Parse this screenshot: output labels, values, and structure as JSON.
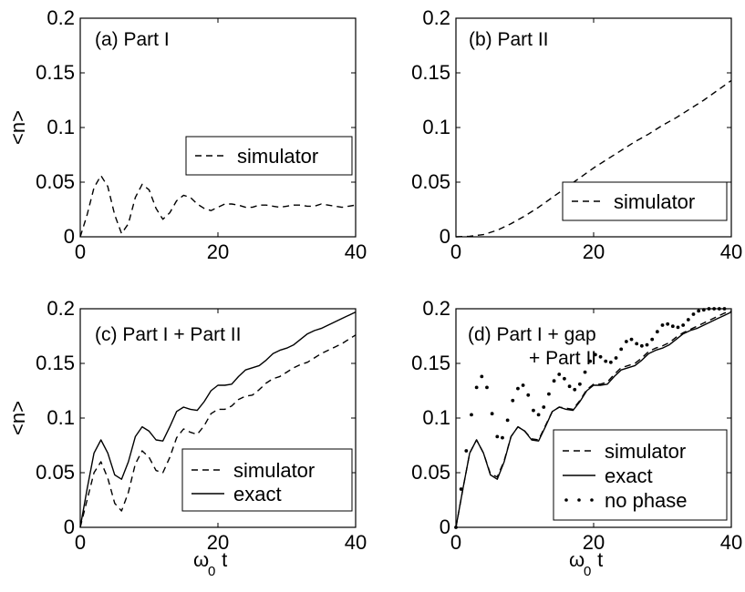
{
  "figure": {
    "shared_ylabel": "<n>",
    "shared_xlabel_main": "ω",
    "shared_xlabel_sub": "0",
    "shared_xlabel_tail": " t"
  },
  "chart_data": [
    {
      "type": "line",
      "title": "(a) Part I",
      "xlabel": "",
      "ylabel": "<n>",
      "xlim": [
        0,
        40
      ],
      "ylim": [
        0,
        0.2
      ],
      "xticks": [
        "0",
        "20",
        "40"
      ],
      "yticks": [
        "0",
        "0.05",
        "0.1",
        "0.15",
        "0.2"
      ],
      "legend": "right-middle",
      "series": [
        {
          "name": "simulator",
          "style": "dashed",
          "x": [
            0,
            1,
            2,
            3,
            4,
            5,
            6,
            7,
            8,
            9,
            10,
            11,
            12,
            13,
            14,
            15,
            16,
            17,
            18,
            19,
            20,
            21,
            22,
            23,
            24,
            25,
            26,
            27,
            28,
            29,
            30,
            31,
            32,
            33,
            34,
            35,
            36,
            37,
            38,
            39,
            40
          ],
          "y": [
            0,
            0.02,
            0.045,
            0.056,
            0.046,
            0.02,
            0.003,
            0.012,
            0.036,
            0.048,
            0.043,
            0.026,
            0.016,
            0.022,
            0.033,
            0.038,
            0.036,
            0.03,
            0.026,
            0.024,
            0.027,
            0.03,
            0.03,
            0.029,
            0.027,
            0.027,
            0.029,
            0.029,
            0.028,
            0.027,
            0.028,
            0.029,
            0.029,
            0.028,
            0.028,
            0.03,
            0.029,
            0.028,
            0.027,
            0.028,
            0.029
          ]
        }
      ]
    },
    {
      "type": "line",
      "title": "(b) Part II",
      "xlabel": "",
      "ylabel": "",
      "xlim": [
        0,
        40
      ],
      "ylim": [
        0,
        0.2
      ],
      "xticks": [
        "0",
        "20",
        "40"
      ],
      "yticks": [
        "0",
        "0.05",
        "0.1",
        "0.15",
        "0.2"
      ],
      "legend": "bottom-right",
      "series": [
        {
          "name": "simulator",
          "style": "dashed",
          "x": [
            0,
            2,
            4,
            6,
            8,
            10,
            12,
            14,
            16,
            18,
            20,
            22,
            24,
            26,
            28,
            30,
            32,
            34,
            36,
            38,
            40
          ],
          "y": [
            0,
            0.0005,
            0.002,
            0.006,
            0.012,
            0.019,
            0.027,
            0.036,
            0.045,
            0.054,
            0.063,
            0.071,
            0.079,
            0.087,
            0.094,
            0.102,
            0.109,
            0.117,
            0.125,
            0.134,
            0.143
          ]
        }
      ]
    },
    {
      "type": "line",
      "title": "(c) Part I + Part II",
      "xlabel": "ω0 t",
      "ylabel": "<n>",
      "xlim": [
        0,
        40
      ],
      "ylim": [
        0,
        0.2
      ],
      "xticks": [
        "0",
        "20",
        "40"
      ],
      "yticks": [
        "0",
        "0.05",
        "0.1",
        "0.15",
        "0.2"
      ],
      "legend": "bottom-right",
      "series": [
        {
          "name": "simulator",
          "style": "dashed",
          "x": [
            0,
            1,
            2,
            3,
            4,
            5,
            6,
            7,
            8,
            9,
            10,
            11,
            12,
            13,
            14,
            15,
            16,
            17,
            18,
            19,
            20,
            21,
            22,
            23,
            24,
            25,
            26,
            27,
            28,
            29,
            30,
            31,
            32,
            33,
            34,
            35,
            36,
            37,
            38,
            39,
            40
          ],
          "y": [
            0,
            0.025,
            0.05,
            0.06,
            0.045,
            0.022,
            0.015,
            0.032,
            0.058,
            0.07,
            0.064,
            0.052,
            0.05,
            0.064,
            0.082,
            0.09,
            0.087,
            0.085,
            0.093,
            0.104,
            0.108,
            0.108,
            0.111,
            0.117,
            0.12,
            0.121,
            0.126,
            0.132,
            0.136,
            0.138,
            0.142,
            0.146,
            0.149,
            0.151,
            0.155,
            0.159,
            0.162,
            0.165,
            0.168,
            0.172,
            0.176
          ]
        },
        {
          "name": "exact",
          "style": "solid",
          "x": [
            0,
            1,
            2,
            3,
            4,
            5,
            6,
            7,
            8,
            9,
            10,
            11,
            12,
            13,
            14,
            15,
            16,
            17,
            18,
            19,
            20,
            21,
            22,
            23,
            24,
            25,
            26,
            27,
            28,
            29,
            30,
            31,
            32,
            33,
            34,
            35,
            36,
            37,
            38,
            39,
            40
          ],
          "y": [
            0,
            0.035,
            0.068,
            0.08,
            0.068,
            0.048,
            0.044,
            0.06,
            0.083,
            0.092,
            0.088,
            0.08,
            0.079,
            0.092,
            0.106,
            0.11,
            0.108,
            0.107,
            0.115,
            0.125,
            0.13,
            0.13,
            0.131,
            0.138,
            0.144,
            0.146,
            0.148,
            0.153,
            0.159,
            0.162,
            0.164,
            0.167,
            0.172,
            0.177,
            0.18,
            0.182,
            0.185,
            0.188,
            0.191,
            0.194,
            0.197
          ]
        }
      ]
    },
    {
      "type": "line",
      "title": "(d) Part I + gap + Part II",
      "xlabel": "ω0 t",
      "ylabel": "",
      "xlim": [
        0,
        40
      ],
      "ylim": [
        0,
        0.2
      ],
      "xticks": [
        "0",
        "20",
        "40"
      ],
      "yticks": [
        "0",
        "0.05",
        "0.1",
        "0.15",
        "0.2"
      ],
      "legend": "bottom-right",
      "series": [
        {
          "name": "simulator",
          "style": "dashed",
          "x": [
            0,
            1,
            2,
            3,
            4,
            5,
            6,
            7,
            8,
            9,
            10,
            11,
            12,
            13,
            14,
            15,
            16,
            17,
            18,
            19,
            20,
            21,
            22,
            23,
            24,
            25,
            26,
            27,
            28,
            29,
            30,
            31,
            32,
            33,
            34,
            35,
            36,
            37,
            38,
            39,
            40
          ],
          "y": [
            0,
            0.035,
            0.068,
            0.08,
            0.068,
            0.049,
            0.046,
            0.061,
            0.083,
            0.092,
            0.088,
            0.081,
            0.08,
            0.093,
            0.106,
            0.11,
            0.109,
            0.108,
            0.116,
            0.126,
            0.131,
            0.131,
            0.133,
            0.14,
            0.146,
            0.148,
            0.15,
            0.155,
            0.161,
            0.164,
            0.166,
            0.169,
            0.174,
            0.178,
            0.181,
            0.184,
            0.187,
            0.19,
            0.193,
            0.196,
            0.198
          ]
        },
        {
          "name": "exact",
          "style": "solid",
          "x": [
            0,
            1,
            2,
            3,
            4,
            5,
            6,
            7,
            8,
            9,
            10,
            11,
            12,
            13,
            14,
            15,
            16,
            17,
            18,
            19,
            20,
            21,
            22,
            23,
            24,
            25,
            26,
            27,
            28,
            29,
            30,
            31,
            32,
            33,
            34,
            35,
            36,
            37,
            38,
            39,
            40
          ],
          "y": [
            0,
            0.035,
            0.068,
            0.08,
            0.068,
            0.048,
            0.044,
            0.06,
            0.083,
            0.092,
            0.088,
            0.08,
            0.079,
            0.092,
            0.106,
            0.11,
            0.108,
            0.107,
            0.115,
            0.125,
            0.13,
            0.13,
            0.131,
            0.138,
            0.144,
            0.146,
            0.148,
            0.153,
            0.159,
            0.162,
            0.164,
            0.167,
            0.172,
            0.177,
            0.18,
            0.182,
            0.185,
            0.188,
            0.191,
            0.194,
            0.197
          ]
        },
        {
          "name": "no phase",
          "style": "dotted",
          "x": [
            0,
            0.75,
            1.5,
            2.25,
            3,
            3.75,
            4.5,
            5.25,
            6,
            6.75,
            7.5,
            8.25,
            9,
            9.75,
            10.5,
            11.25,
            12,
            12.75,
            13.5,
            14.25,
            15,
            15.75,
            16.5,
            17.25,
            18,
            18.75,
            19.5,
            20.25,
            21,
            21.75,
            22.5,
            23.25,
            24,
            24.75,
            25.5,
            26.25,
            27,
            27.75,
            28.5,
            29.25,
            30,
            30.75,
            31.5,
            32.25,
            33,
            33.75,
            34.5,
            35.25,
            36,
            36.75,
            37.5,
            38.25,
            39
          ],
          "y": [
            0,
            0.035,
            0.07,
            0.103,
            0.128,
            0.138,
            0.128,
            0.104,
            0.083,
            0.082,
            0.098,
            0.116,
            0.127,
            0.13,
            0.121,
            0.107,
            0.103,
            0.11,
            0.122,
            0.134,
            0.14,
            0.136,
            0.129,
            0.126,
            0.131,
            0.142,
            0.152,
            0.158,
            0.156,
            0.152,
            0.151,
            0.155,
            0.163,
            0.17,
            0.172,
            0.168,
            0.166,
            0.167,
            0.172,
            0.179,
            0.185,
            0.186,
            0.184,
            0.183,
            0.185,
            0.19,
            0.195,
            0.198,
            0.199,
            0.2,
            0.2,
            0.2,
            0.2
          ]
        }
      ]
    }
  ]
}
